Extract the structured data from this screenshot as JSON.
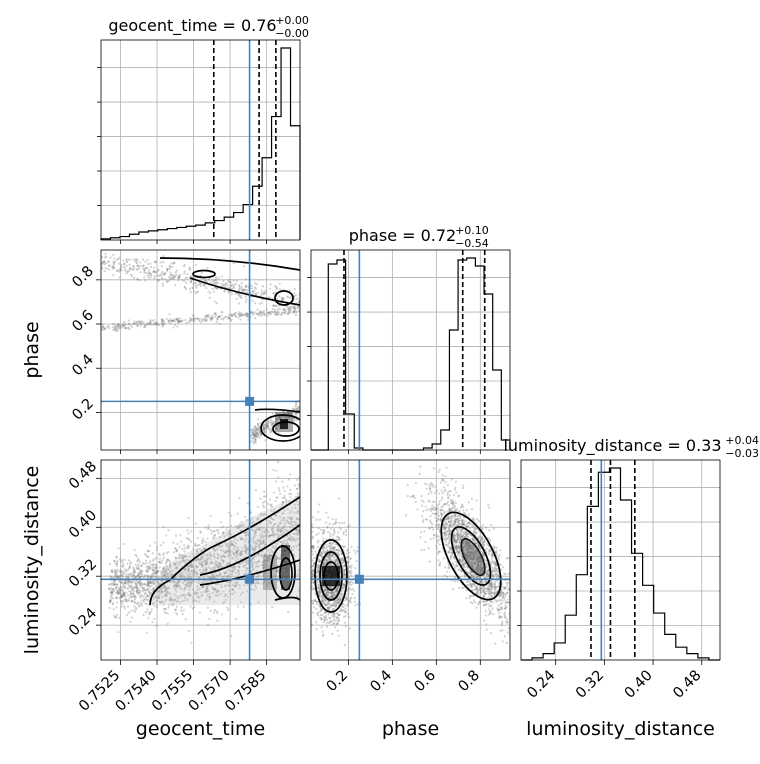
{
  "colors": {
    "truth": "#4682b4",
    "contour": "#000000",
    "grid": "#b0b0b0",
    "scatter": "#7f7f7f"
  },
  "chart_data": {
    "type": "corner",
    "parameters": [
      "geocent_time",
      "phase",
      "luminosity_distance"
    ],
    "truths": {
      "geocent_time": 0.7578,
      "phase": 0.25,
      "luminosity_distance": 0.315
    },
    "axes": {
      "geocent_time": {
        "lim": [
          0.7517,
          0.75987
        ],
        "ticks": [
          0.7525,
          0.754,
          0.7555,
          0.757,
          0.7585
        ],
        "tick_labels": [
          "0.7525",
          "0.7540",
          "0.7555",
          "0.7570",
          "0.7585"
        ],
        "label": "geocent_time"
      },
      "phase": {
        "lim": [
          0.03,
          0.935
        ],
        "ticks": [
          0.2,
          0.4,
          0.6,
          0.8
        ],
        "tick_labels": [
          "0.2",
          "0.4",
          "0.6",
          "0.8"
        ],
        "label": "phase"
      },
      "luminosity_distance": {
        "lim": [
          0.183,
          0.51
        ],
        "ticks": [
          0.24,
          0.32,
          0.4,
          0.48
        ],
        "tick_labels": [
          "0.24",
          "0.32",
          "0.40",
          "0.48"
        ],
        "label": "luminosity_distance"
      }
    },
    "marginals": [
      {
        "param": "geocent_time",
        "title": {
          "main": "geocent_time = 0.76",
          "sup": "+0.00",
          "sub": "−0.00"
        },
        "quantiles": [
          0.75633,
          0.75819,
          0.75888
        ],
        "counts": [
          1,
          2,
          3,
          5,
          7,
          8,
          9,
          10,
          11,
          12,
          13,
          15,
          17,
          20,
          24,
          31,
          47,
          72,
          108,
          168,
          100
        ]
      },
      {
        "param": "phase",
        "title": {
          "main": "phase = 0.72",
          "sup": "+0.10",
          "sub": "−0.54"
        },
        "quantiles": [
          0.18,
          0.72,
          0.82
        ],
        "counts": [
          0,
          0,
          93,
          95,
          18,
          1,
          0,
          0,
          0,
          0,
          0,
          0,
          0,
          1,
          3,
          10,
          60,
          95,
          96,
          92,
          78,
          40,
          5
        ]
      },
      {
        "param": "luminosity_distance",
        "title": {
          "main": "luminosity_distance = 0.33",
          "sup": "+0.04",
          "sub": "−0.03"
        },
        "quantiles": [
          0.298,
          0.33,
          0.37
        ],
        "counts": [
          0,
          1,
          3,
          8,
          21,
          40,
          72,
          88,
          90,
          75,
          50,
          35,
          22,
          12,
          6,
          3,
          1,
          0
        ]
      }
    ]
  }
}
